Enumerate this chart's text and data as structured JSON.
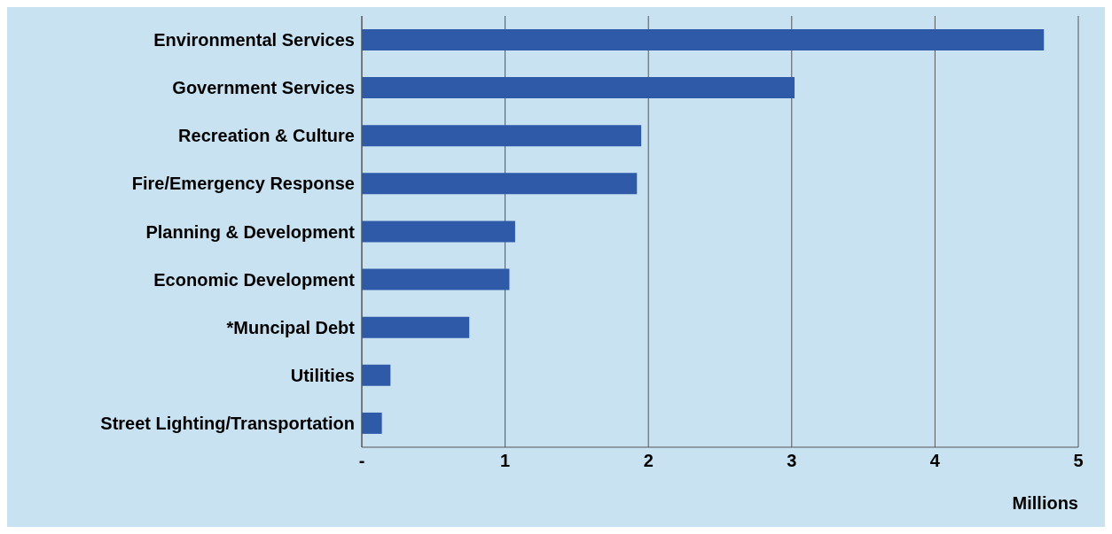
{
  "chart_data": {
    "type": "bar",
    "orientation": "horizontal",
    "xlabel": "Millions",
    "categories": [
      "Environmental Services",
      "Government Services",
      "Recreation & Culture",
      "Fire/Emergency Response",
      "Planning & Development",
      "Economic Development",
      "*Muncipal Debt",
      "Utilities",
      "Street Lighting/Transportation"
    ],
    "values": [
      4.76,
      3.02,
      1.95,
      1.92,
      1.07,
      1.03,
      0.75,
      0.2,
      0.14
    ],
    "color": "#2e5aa8",
    "xlim": [
      0,
      5
    ],
    "xticks": [
      {
        "value": 0,
        "label": "-"
      },
      1,
      2,
      3,
      4,
      5
    ],
    "grid": "x"
  }
}
